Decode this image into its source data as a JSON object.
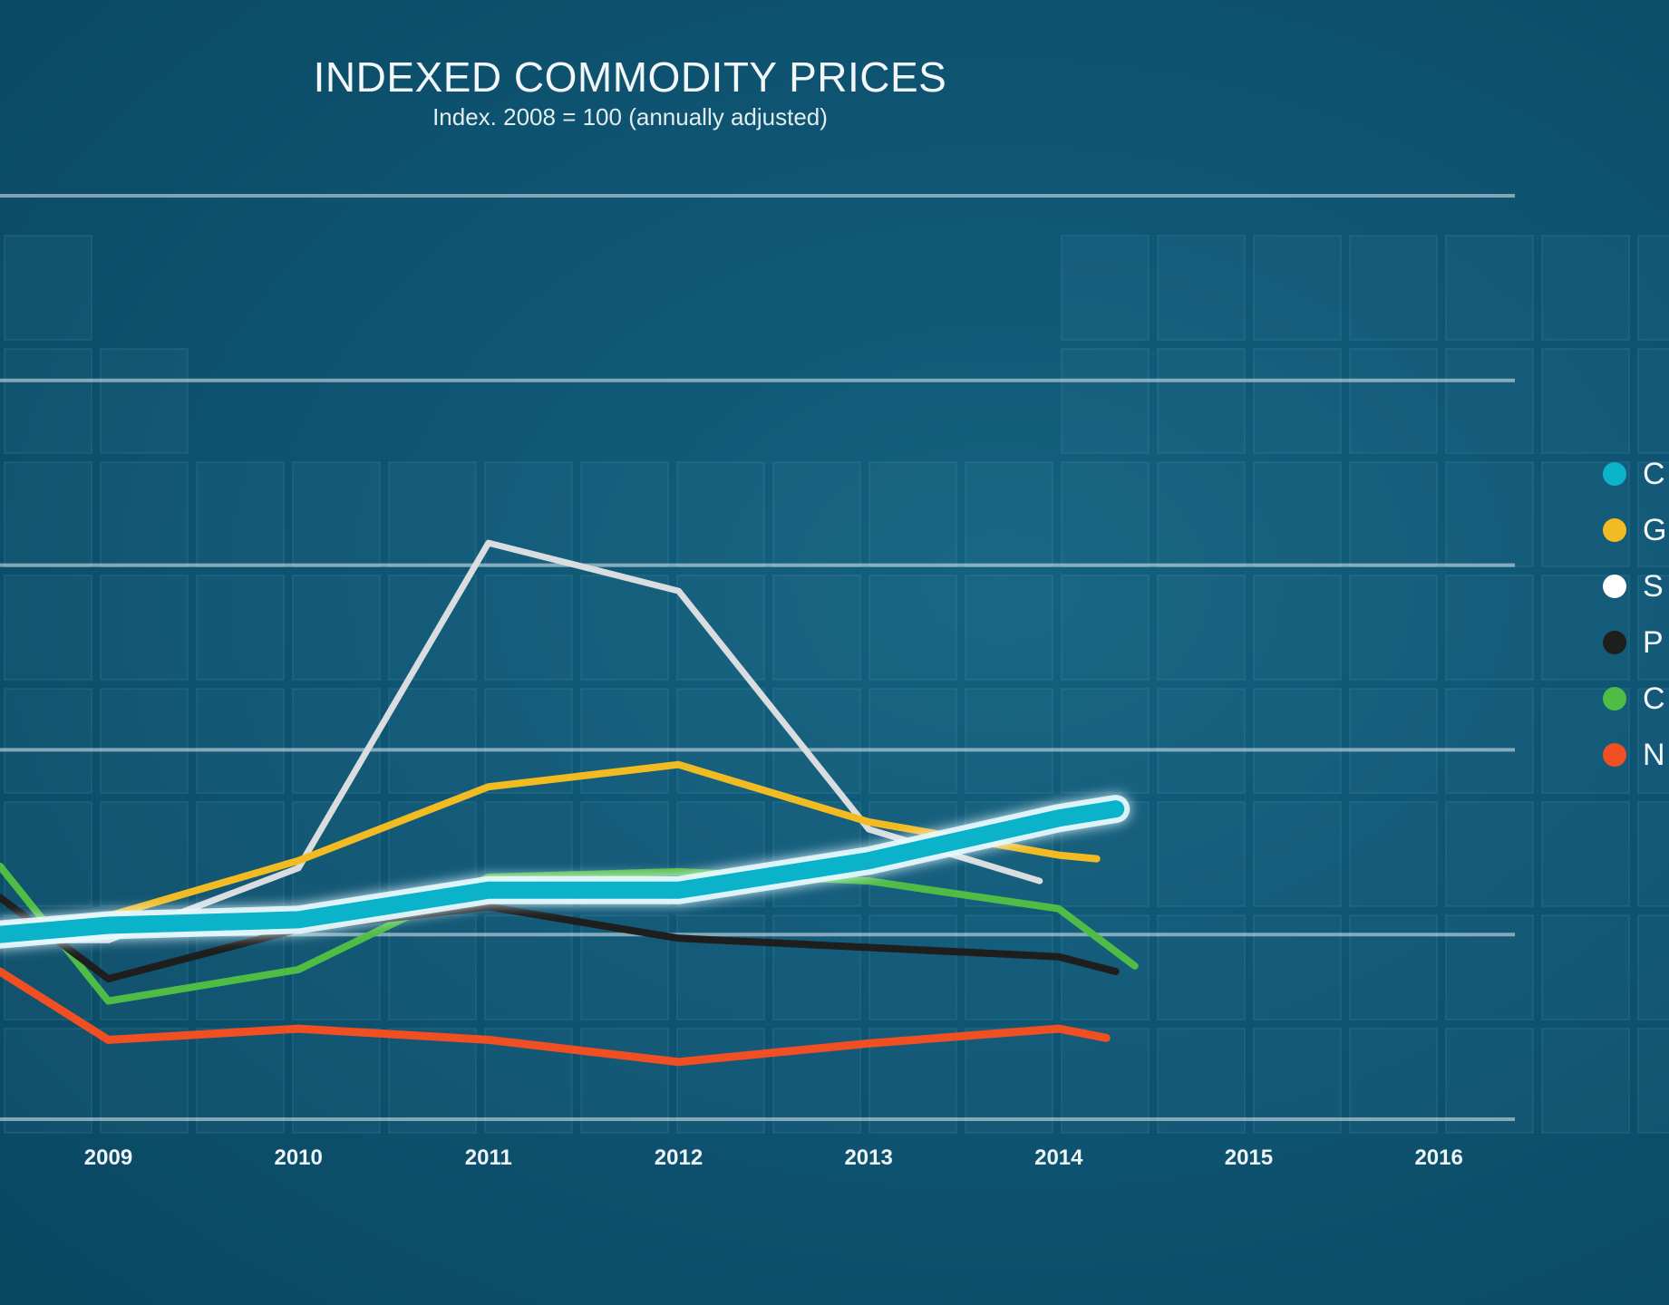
{
  "chart_data": {
    "type": "line",
    "title": "INDEXED COMMODITY PRICES",
    "subtitle": "Index. 2008 = 100 (annually adjusted)",
    "xlabel": "",
    "ylabel": "",
    "x_ticks": [
      "2009",
      "2010",
      "2011",
      "2012",
      "2013",
      "2014",
      "2015",
      "2016"
    ],
    "x_range": [
      2008.43,
      2016.4
    ],
    "y_range": [
      0,
      500
    ],
    "grid": true,
    "legend_position": "right",
    "series": [
      {
        "color": "#ef4f22",
        "width": 9,
        "x": [
          2008.43,
          2009.0,
          2010.0,
          2011.0,
          2012.0,
          2013.0,
          2014.0,
          2014.25
        ],
        "y": [
          80,
          43,
          49,
          43,
          31,
          41,
          49,
          44
        ]
      },
      {
        "color": "#4fbd45",
        "width": 8,
        "x": [
          2008.43,
          2009.0,
          2010.0,
          2011.0,
          2012.0,
          2013.0,
          2014.0,
          2014.4
        ],
        "y": [
          137,
          64,
          81,
          131,
          134,
          129,
          114,
          83
        ]
      },
      {
        "color": "#1e1e1e",
        "width": 8,
        "x": [
          2008.43,
          2009.0,
          2010.0,
          2011.0,
          2012.0,
          2013.0,
          2014.0,
          2014.3
        ],
        "y": [
          120,
          76,
          103,
          115,
          98,
          93,
          88,
          80
        ]
      },
      {
        "color": "#d9dde0",
        "width": 7,
        "x": [
          2008.43,
          2009.0,
          2010.0,
          2011.0,
          2012.0,
          2013.0,
          2013.9
        ],
        "y": [
          97,
          97,
          136,
          312,
          286,
          157,
          129
        ]
      },
      {
        "color": "#f3bb22",
        "width": 8,
        "x": [
          2008.43,
          2009.0,
          2010.0,
          2011.0,
          2012.0,
          2013.0,
          2014.0,
          2014.2
        ],
        "y": [
          104,
          110,
          140,
          180,
          192,
          161,
          143,
          141
        ]
      },
      {
        "color": "#0ab3c9",
        "width": 19,
        "glow": true,
        "x": [
          2008.43,
          2009.0,
          2010.0,
          2011.0,
          2012.0,
          2013.0,
          2014.0,
          2014.3
        ],
        "y": [
          100,
          105,
          108,
          124,
          124,
          140,
          163,
          168
        ]
      }
    ],
    "legend_entries": [
      {
        "color": "#0ab3c9",
        "label": "C"
      },
      {
        "color": "#f3bb22",
        "label": "G"
      },
      {
        "color": "#ffffff",
        "label": "S"
      },
      {
        "color": "#1e1e1e",
        "label": "P"
      },
      {
        "color": "#4fbd45",
        "label": "C"
      },
      {
        "color": "#ef4f22",
        "label": "N"
      }
    ]
  }
}
